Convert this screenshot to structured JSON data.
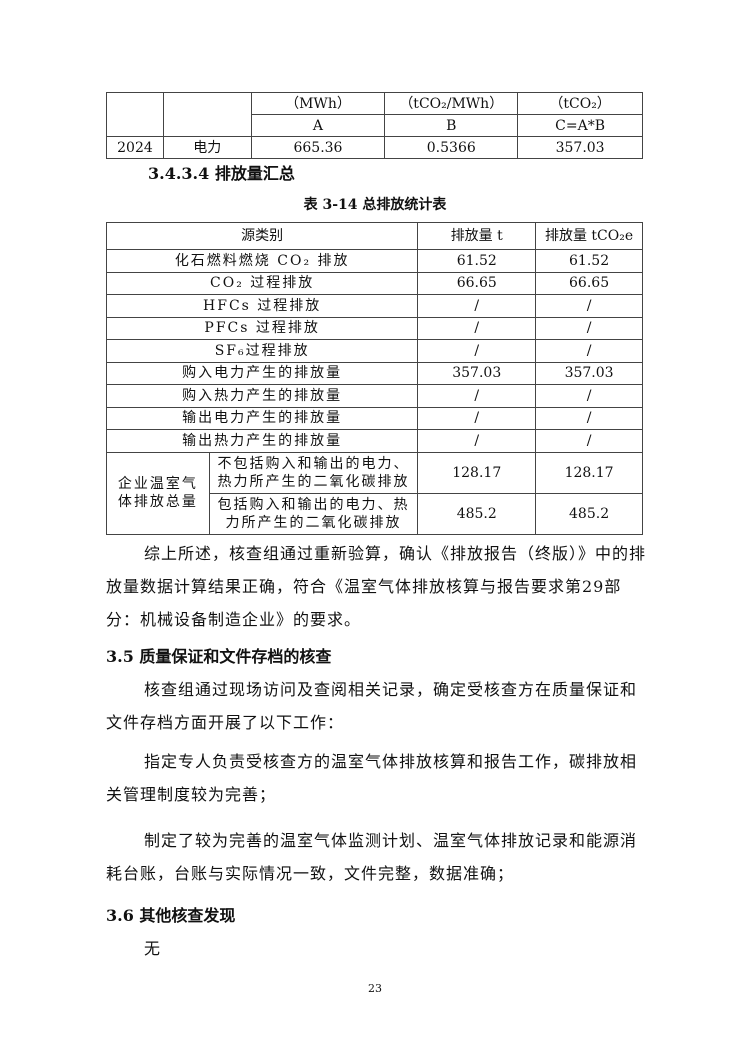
{
  "top_table": {
    "unit_row": [
      "",
      "",
      "（MWh）",
      "（tCO₂/MWh）",
      "（tCO₂）"
    ],
    "formula_row": [
      "",
      "",
      "A",
      "B",
      "C=A*B"
    ],
    "data_row": [
      "2024",
      "电力",
      "665.36",
      "0.5366",
      "357.03"
    ]
  },
  "section_3434": "3.4.3.4 排放量汇总",
  "table_caption": "表 3-14 总排放统计表",
  "summary_table": {
    "headers": [
      "源类别",
      "排放量 t",
      "排放量 tCO₂e"
    ],
    "rows": [
      [
        "化石燃料燃烧 CO₂ 排放",
        "61.52",
        "61.52"
      ],
      [
        "CO₂ 过程排放",
        "66.65",
        "66.65"
      ],
      [
        "HFCs 过程排放",
        "/",
        "/"
      ],
      [
        "PFCs 过程排放",
        "/",
        "/"
      ],
      [
        "SF₆过程排放",
        "/",
        "/"
      ],
      [
        "购入电力产生的排放量",
        "357.03",
        "357.03"
      ],
      [
        "购入热力产生的排放量",
        "/",
        "/"
      ],
      [
        "输出电力产生的排放量",
        "/",
        "/"
      ],
      [
        "输出热力产生的排放量",
        "/",
        "/"
      ]
    ],
    "total_label": "企业温室气体排放总量",
    "total_rows": [
      [
        "不包括购入和输出的电力、热力所产生的二氧化碳排放",
        "128.17",
        "128.17"
      ],
      [
        "包括购入和输出的电力、热力所产生的二氧化碳排放",
        "485.2",
        "485.2"
      ]
    ]
  },
  "para_summary": "综上所述，核查组通过重新验算，确认《排放报告（终版）》中的排放量数据计算结果正确，符合《温室气体排放核算与报告要求第29部分：机械设备制造企业》的要求。",
  "section_35": "3.5 质量保证和文件存档的核查",
  "para_35_1": "核查组通过现场访问及查阅相关记录，确定受核查方在质量保证和文件存档方面开展了以下工作：",
  "para_35_2": "指定专人负责受核查方的温室气体排放核算和报告工作，碳排放相关管理制度较为完善；",
  "para_35_3": "制定了较为完善的温室气体监测计划、温室气体排放记录和能源消耗台账，台账与实际情况一致，文件完整，数据准确；",
  "section_36": "3.6 其他核查发现",
  "para_36": "无",
  "page_number": "23"
}
